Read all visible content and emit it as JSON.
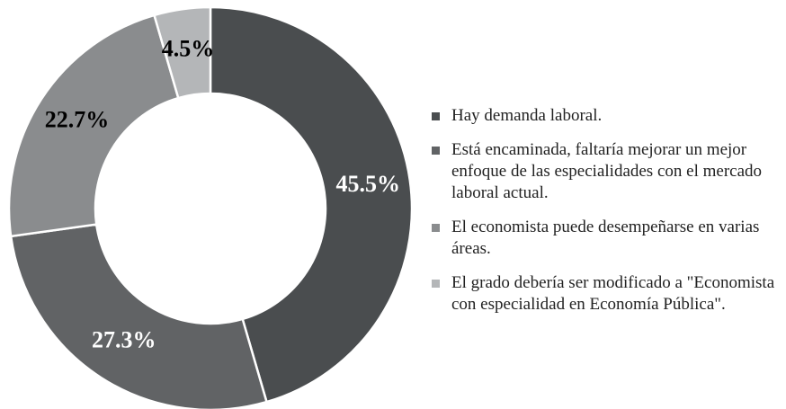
{
  "chart_data": {
    "type": "donut",
    "categories": [
      "Hay demanda laboral.",
      "Está encaminada, faltaría mejorar un mejor enfoque de las especialidades con el mercado laboral actual.",
      "El economista puede desempeñarse en varias áreas.",
      "El grado debería ser modificado a \"Economista con especialidad en Economía Pública\"."
    ],
    "values": [
      45.5,
      27.3,
      22.7,
      4.5
    ],
    "value_labels": [
      "45.5%",
      "27.3%",
      "22.7%",
      "4.5%"
    ],
    "colors": [
      "#4a4d4f",
      "#616365",
      "#8a8c8e",
      "#b4b6b8"
    ],
    "label_colors": [
      "#ffffff",
      "#ffffff",
      "#000000",
      "#000000"
    ],
    "legend": "right"
  }
}
